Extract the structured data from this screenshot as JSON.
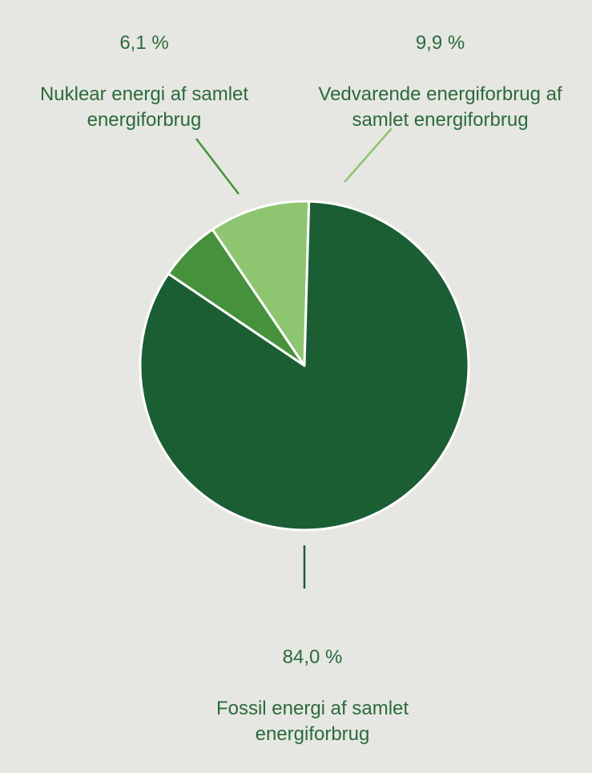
{
  "chart_data": {
    "type": "pie",
    "title": "",
    "slices": [
      {
        "label": "Nuklear energi af samlet energiforbrug",
        "value": 6.1,
        "value_label": "6,1 %",
        "color": "#46913c"
      },
      {
        "label": "Vedvarende energiforbrug af samlet energiforbrug",
        "value": 9.9,
        "value_label": "9,9 %",
        "color": "#8ec571"
      },
      {
        "label": "Fossil energi af samlet energiforbrug",
        "value": 84.0,
        "value_label": "84,0 %",
        "color": "#1b5e34"
      }
    ],
    "slice_border_color": "#ffffff",
    "background": "#e6e7e2"
  },
  "labels": {
    "nuclear": {
      "pct": "6,1 %",
      "name": "Nuklear energi af samlet\nenergiforbrug",
      "leader_color": "#46913c"
    },
    "renewable": {
      "pct": "9,9 %",
      "name": "Vedvarende energiforbrug af\nsamlet energiforbrug",
      "leader_color": "#8ec571"
    },
    "fossil": {
      "pct": "84,0 %",
      "name": "Fossil energi af samlet\nenergiforbrug",
      "leader_color": "#1b5e34"
    }
  }
}
